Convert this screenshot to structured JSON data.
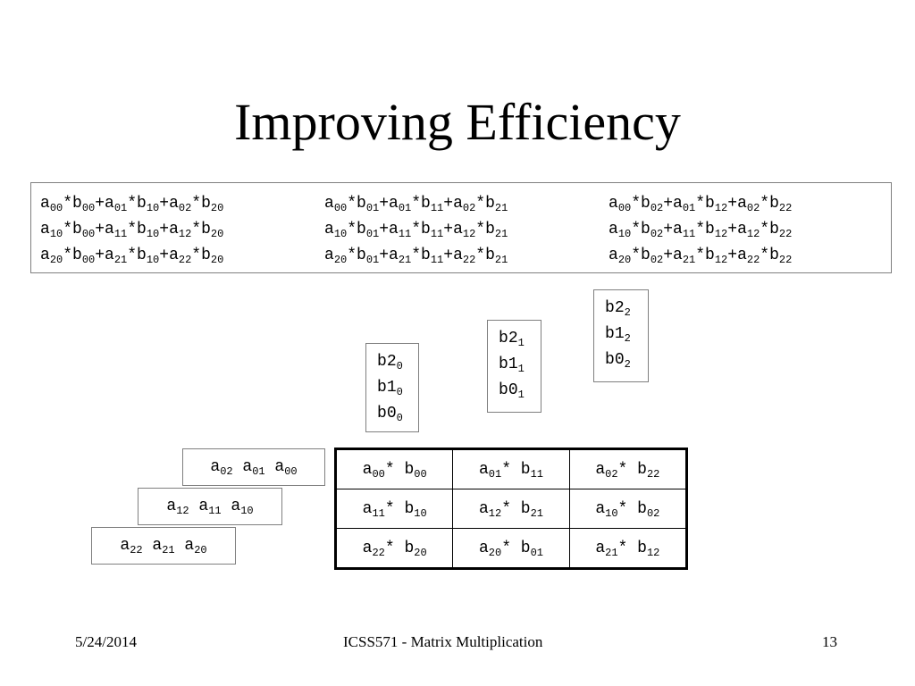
{
  "slide": {
    "title": "Improving Efficiency",
    "formulas": {
      "rows": [
        [
          [
            [
              "a",
              "00"
            ],
            [
              "*b",
              "00"
            ],
            [
              "+a",
              "01"
            ],
            [
              "*b",
              "10"
            ],
            [
              "+a",
              "02"
            ],
            [
              "*b",
              "20"
            ]
          ],
          [
            [
              "a",
              "00"
            ],
            [
              "*b",
              "01"
            ],
            [
              "+a",
              "01"
            ],
            [
              "*b",
              "11"
            ],
            [
              "+a",
              "02"
            ],
            [
              "*b",
              "21"
            ]
          ],
          [
            [
              "a",
              "00"
            ],
            [
              "*b",
              "02"
            ],
            [
              "+a",
              "01"
            ],
            [
              "*b",
              "12"
            ],
            [
              "+a",
              "02"
            ],
            [
              "*b",
              "22"
            ]
          ]
        ],
        [
          [
            [
              "a",
              "10"
            ],
            [
              "*b",
              "00"
            ],
            [
              "+a",
              "11"
            ],
            [
              "*b",
              "10"
            ],
            [
              "+a",
              "12"
            ],
            [
              "*b",
              "20"
            ]
          ],
          [
            [
              "a",
              "10"
            ],
            [
              "*b",
              "01"
            ],
            [
              "+a",
              "11"
            ],
            [
              "*b",
              "11"
            ],
            [
              "+a",
              "12"
            ],
            [
              "*b",
              "21"
            ]
          ],
          [
            [
              "a",
              "10"
            ],
            [
              "*b",
              "02"
            ],
            [
              "+a",
              "11"
            ],
            [
              "*b",
              "12"
            ],
            [
              "+a",
              "12"
            ],
            [
              "*b",
              "22"
            ]
          ]
        ],
        [
          [
            [
              "a",
              "20"
            ],
            [
              "*b",
              "00"
            ],
            [
              "+a",
              "21"
            ],
            [
              "*b",
              "10"
            ],
            [
              "+a",
              "22"
            ],
            [
              "*b",
              "20"
            ]
          ],
          [
            [
              "a",
              "20"
            ],
            [
              "*b",
              "01"
            ],
            [
              "+a",
              "21"
            ],
            [
              "*b",
              "11"
            ],
            [
              "+a",
              "22"
            ],
            [
              "*b",
              "21"
            ]
          ],
          [
            [
              "a",
              "20"
            ],
            [
              "*b",
              "02"
            ],
            [
              "+a",
              "21"
            ],
            [
              "*b",
              "12"
            ],
            [
              "+a",
              "22"
            ],
            [
              "*b",
              "22"
            ]
          ]
        ]
      ]
    },
    "b_columns": [
      [
        [
          "b",
          "20"
        ],
        [
          "b",
          "10"
        ],
        [
          "b",
          "00"
        ]
      ],
      [
        [
          "b",
          "21"
        ],
        [
          "b",
          "11"
        ],
        [
          "b",
          "01"
        ]
      ],
      [
        [
          "b",
          "22"
        ],
        [
          "b",
          "12"
        ],
        [
          "b",
          "02"
        ]
      ]
    ],
    "a_rows": [
      [
        [
          "a",
          "02"
        ],
        [
          " a",
          "01"
        ],
        [
          " a",
          "00"
        ]
      ],
      [
        [
          "a",
          "12"
        ],
        [
          " a",
          "11"
        ],
        [
          " a",
          "10"
        ]
      ],
      [
        [
          "a",
          "22"
        ],
        [
          " a",
          "21"
        ],
        [
          " a",
          "20"
        ]
      ]
    ],
    "grid": [
      [
        [
          [
            "a",
            "00"
          ],
          [
            "* b",
            "00"
          ]
        ],
        [
          [
            "a",
            "01"
          ],
          [
            "* b",
            "11"
          ]
        ],
        [
          [
            "a",
            "02"
          ],
          [
            "* b",
            "22"
          ]
        ]
      ],
      [
        [
          [
            "a",
            "11"
          ],
          [
            "* b",
            "10"
          ]
        ],
        [
          [
            "a",
            "12"
          ],
          [
            "* b",
            "21"
          ]
        ],
        [
          [
            "a",
            "10"
          ],
          [
            "* b",
            "02"
          ]
        ]
      ],
      [
        [
          [
            "a",
            "22"
          ],
          [
            "* b",
            "20"
          ]
        ],
        [
          [
            "a",
            "20"
          ],
          [
            "* b",
            "01"
          ]
        ],
        [
          [
            "a",
            "21"
          ],
          [
            "* b",
            "12"
          ]
        ]
      ]
    ],
    "footer": {
      "date": "5/24/2014",
      "course": "ICSS571 - Matrix Multiplication",
      "page": "13"
    }
  }
}
